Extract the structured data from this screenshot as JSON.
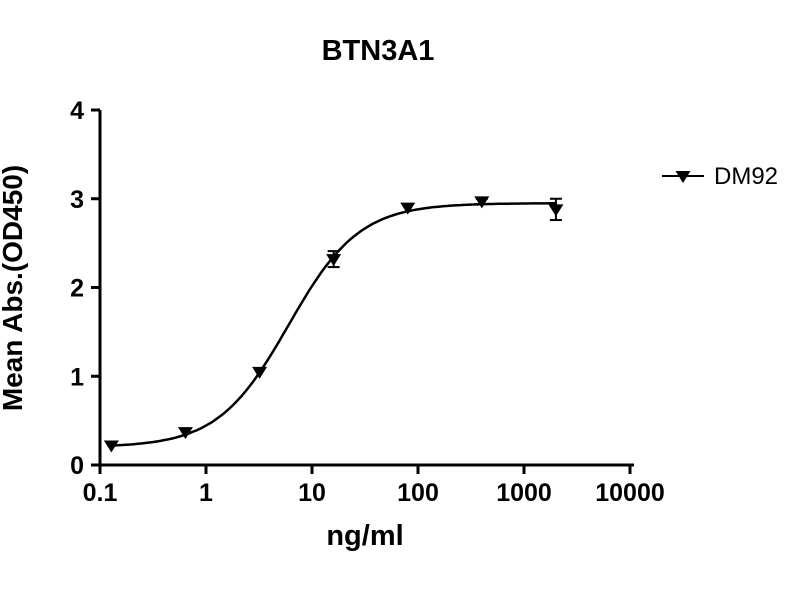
{
  "figure": {
    "title": "BTN3A1",
    "background_color": "#ffffff",
    "accent_color": "#000000"
  },
  "chart_data": {
    "type": "scatter",
    "title": "BTN3A1",
    "xlabel": "ng/ml",
    "ylabel": "Mean Abs.(OD450)",
    "x_scale": "log10",
    "xlim": [
      0.1,
      10000
    ],
    "ylim": [
      0,
      4
    ],
    "x_ticks": [
      0.1,
      1,
      10,
      100,
      1000,
      10000
    ],
    "x_tick_labels": [
      "0.1",
      "1",
      "10",
      "100",
      "1000",
      "10000"
    ],
    "y_ticks": [
      0,
      1,
      2,
      3,
      4
    ],
    "y_tick_labels": [
      "0",
      "1",
      "2",
      "3",
      "4"
    ],
    "grid": false,
    "legend_position": "right",
    "series": [
      {
        "name": "DM92",
        "marker": "triangle-down",
        "color": "#000000",
        "x": [
          0.128,
          0.64,
          3.2,
          16,
          80,
          400,
          2000
        ],
        "y": [
          0.22,
          0.37,
          1.05,
          2.32,
          2.9,
          2.97,
          2.88
        ],
        "yerr": [
          0,
          0,
          0,
          0.09,
          0,
          0.03,
          0.12
        ],
        "fit": {
          "model": "4PL",
          "bottom": 0.2,
          "top": 2.95,
          "ec50": 6,
          "hill": 1.3,
          "x_range": [
            0.128,
            2000
          ]
        }
      }
    ]
  }
}
